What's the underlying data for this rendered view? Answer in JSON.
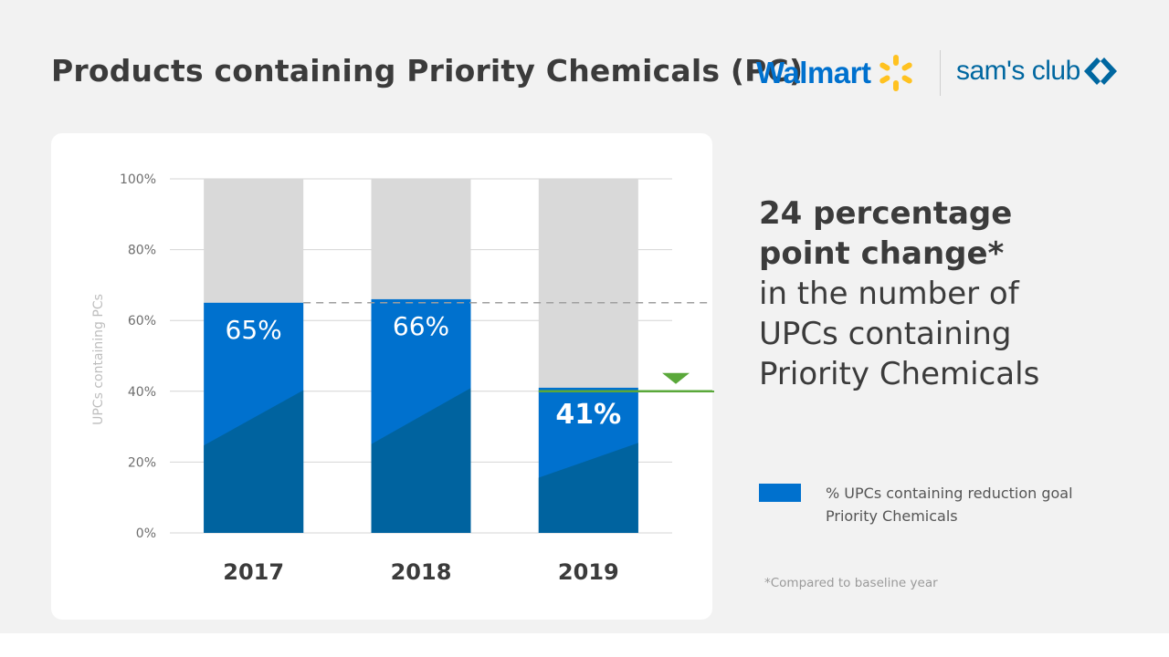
{
  "header": {
    "title": "Products containing Priority Chemicals (PC)",
    "logo_walmart": "Walmart",
    "logo_sams": "sam's club"
  },
  "headline": {
    "bold_line1": "24 percentage",
    "bold_line2": "point change*",
    "line3": "in the number of",
    "line4": "UPCs containing",
    "line5": "Priority Chemicals"
  },
  "legend": {
    "label_line1": "% UPCs containing reduction goal",
    "label_line2": "Priority Chemicals"
  },
  "footnote": "*Compared to baseline year",
  "colors": {
    "bar_primary": "#0071ce",
    "bar_shade": "#00639f",
    "bar_background": "#d9d9d9",
    "goal_line": "#5aa83a",
    "walmart_spark": "#ffc220"
  },
  "chart_data": {
    "type": "bar",
    "stacked_to": 100,
    "categories": [
      "2017",
      "2018",
      "2019"
    ],
    "series": [
      {
        "name": "% UPCs containing reduction goal Priority Chemicals",
        "values": [
          65,
          66,
          41
        ]
      }
    ],
    "data_labels": [
      "65%",
      "66%",
      "41%"
    ],
    "ylabel": "UPCs containing PCs",
    "ylim": [
      0,
      100
    ],
    "yticks": [
      0,
      20,
      40,
      60,
      80,
      100
    ],
    "ytick_labels": [
      "0%",
      "20%",
      "40%",
      "60%",
      "80%",
      "100%"
    ],
    "grid": true,
    "reference_line": {
      "value": 65,
      "style": "dashed"
    },
    "goal_line": {
      "value": 40,
      "marker": "down-triangle"
    }
  }
}
